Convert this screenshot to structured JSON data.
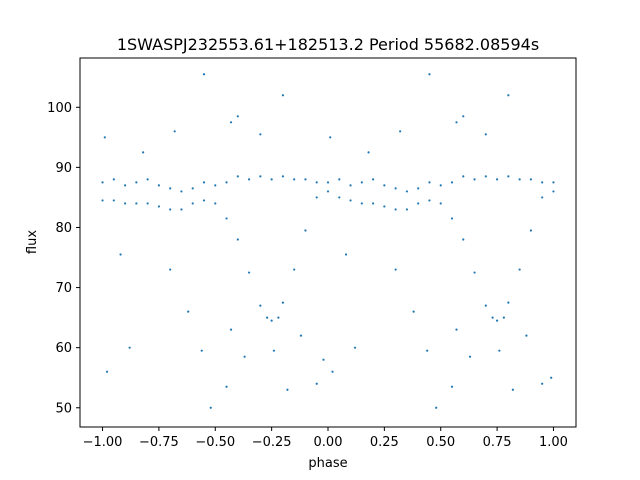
{
  "chart_data": {
    "type": "scatter",
    "title": "1SWASPJ232553.61+182513.2 Period 55682.08594s",
    "xlabel": "phase",
    "ylabel": "flux",
    "xlim": [
      -1.1,
      1.1
    ],
    "ylim": [
      46.8,
      108.2
    ],
    "x_ticks": [
      -1.0,
      -0.75,
      -0.5,
      -0.25,
      0.0,
      0.25,
      0.5,
      0.75,
      1.0
    ],
    "x_tick_labels": [
      "−1.00",
      "−0.75",
      "−0.50",
      "−0.25",
      "0.00",
      "0.25",
      "0.50",
      "0.75",
      "1.00"
    ],
    "y_ticks": [
      50,
      60,
      70,
      80,
      90,
      100
    ],
    "y_tick_labels": [
      "50",
      "60",
      "70",
      "80",
      "90",
      "100"
    ],
    "grid": false,
    "legend": "none",
    "marker_color": "#1f77b4",
    "series": [
      {
        "points": [
          [
            -1.0,
            87.5
          ],
          [
            -0.95,
            88.0
          ],
          [
            -0.9,
            87.0
          ],
          [
            -0.85,
            87.5
          ],
          [
            -0.8,
            88.0
          ],
          [
            -0.75,
            87.0
          ],
          [
            -0.7,
            86.5
          ],
          [
            -0.65,
            86.0
          ],
          [
            -0.6,
            86.5
          ],
          [
            -0.55,
            87.5
          ],
          [
            -0.5,
            87.0
          ],
          [
            -0.45,
            87.5
          ],
          [
            -0.4,
            88.5
          ],
          [
            -0.35,
            88.0
          ],
          [
            -0.3,
            88.5
          ],
          [
            -0.25,
            88.0
          ],
          [
            -0.2,
            88.5
          ],
          [
            -0.15,
            88.0
          ],
          [
            -0.1,
            88.0
          ],
          [
            -0.05,
            87.5
          ],
          [
            0.0,
            87.5
          ],
          [
            0.05,
            88.0
          ],
          [
            0.1,
            87.0
          ],
          [
            0.15,
            87.5
          ],
          [
            0.2,
            88.0
          ],
          [
            0.25,
            87.0
          ],
          [
            0.3,
            86.5
          ],
          [
            0.35,
            86.0
          ],
          [
            0.4,
            86.5
          ],
          [
            0.45,
            87.5
          ],
          [
            0.5,
            87.0
          ],
          [
            0.55,
            87.5
          ],
          [
            0.6,
            88.5
          ],
          [
            0.65,
            88.0
          ],
          [
            0.7,
            88.5
          ],
          [
            0.75,
            88.0
          ],
          [
            0.8,
            88.5
          ],
          [
            0.85,
            88.0
          ],
          [
            0.9,
            88.0
          ],
          [
            0.95,
            87.5
          ],
          [
            1.0,
            87.5
          ],
          [
            -1.0,
            84.5
          ],
          [
            -0.95,
            84.5
          ],
          [
            -0.9,
            84.0
          ],
          [
            -0.85,
            84.0
          ],
          [
            -0.8,
            84.0
          ],
          [
            -0.75,
            83.5
          ],
          [
            -0.7,
            83.0
          ],
          [
            -0.65,
            83.0
          ],
          [
            -0.6,
            84.0
          ],
          [
            -0.55,
            84.5
          ],
          [
            -0.5,
            84.0
          ],
          [
            -0.45,
            81.5
          ],
          [
            -0.4,
            78.0
          ],
          [
            -0.35,
            72.5
          ],
          [
            -0.3,
            67.0
          ],
          [
            -0.27,
            65.0
          ],
          [
            -0.25,
            64.5
          ],
          [
            -0.22,
            65.0
          ],
          [
            -0.2,
            67.5
          ],
          [
            -0.15,
            73.0
          ],
          [
            -0.1,
            79.5
          ],
          [
            -0.05,
            85.0
          ],
          [
            0.0,
            86.0
          ],
          [
            0.05,
            85.0
          ],
          [
            0.1,
            84.5
          ],
          [
            0.15,
            84.0
          ],
          [
            0.2,
            84.0
          ],
          [
            0.25,
            83.5
          ],
          [
            0.3,
            83.0
          ],
          [
            0.35,
            83.0
          ],
          [
            0.4,
            84.0
          ],
          [
            0.45,
            84.5
          ],
          [
            0.5,
            84.0
          ],
          [
            0.55,
            81.5
          ],
          [
            0.6,
            78.0
          ],
          [
            0.65,
            72.5
          ],
          [
            0.7,
            67.0
          ],
          [
            0.73,
            65.0
          ],
          [
            0.75,
            64.5
          ],
          [
            0.78,
            65.0
          ],
          [
            0.8,
            67.5
          ],
          [
            0.85,
            73.0
          ],
          [
            0.9,
            79.5
          ],
          [
            0.95,
            85.0
          ],
          [
            1.0,
            86.0
          ],
          [
            -0.98,
            56.0
          ],
          [
            -0.92,
            75.5
          ],
          [
            -0.88,
            60.0
          ],
          [
            -0.7,
            73.0
          ],
          [
            -0.62,
            66.0
          ],
          [
            -0.56,
            59.5
          ],
          [
            -0.52,
            50.0
          ],
          [
            -0.45,
            53.5
          ],
          [
            -0.43,
            63.0
          ],
          [
            -0.37,
            58.5
          ],
          [
            -0.24,
            59.5
          ],
          [
            -0.18,
            53.0
          ],
          [
            -0.12,
            62.0
          ],
          [
            -0.05,
            54.0
          ],
          [
            -0.02,
            58.0
          ],
          [
            0.02,
            56.0
          ],
          [
            0.08,
            75.5
          ],
          [
            0.12,
            60.0
          ],
          [
            0.3,
            73.0
          ],
          [
            0.38,
            66.0
          ],
          [
            0.44,
            59.5
          ],
          [
            0.48,
            50.0
          ],
          [
            0.55,
            53.5
          ],
          [
            0.57,
            63.0
          ],
          [
            0.63,
            58.5
          ],
          [
            0.76,
            59.5
          ],
          [
            0.82,
            53.0
          ],
          [
            0.88,
            62.0
          ],
          [
            0.95,
            54.0
          ],
          [
            0.99,
            55.0
          ],
          [
            -0.55,
            105.5
          ],
          [
            -0.43,
            97.5
          ],
          [
            -0.4,
            98.5
          ],
          [
            -0.68,
            96.0
          ],
          [
            -0.2,
            102.0
          ],
          [
            0.45,
            105.5
          ],
          [
            0.57,
            97.5
          ],
          [
            0.6,
            98.5
          ],
          [
            0.32,
            96.0
          ],
          [
            0.8,
            102.0
          ],
          [
            -0.99,
            95.0
          ],
          [
            0.01,
            95.0
          ],
          [
            -0.3,
            95.5
          ],
          [
            0.7,
            95.5
          ],
          [
            -0.82,
            92.5
          ],
          [
            0.18,
            92.5
          ]
        ]
      }
    ]
  }
}
